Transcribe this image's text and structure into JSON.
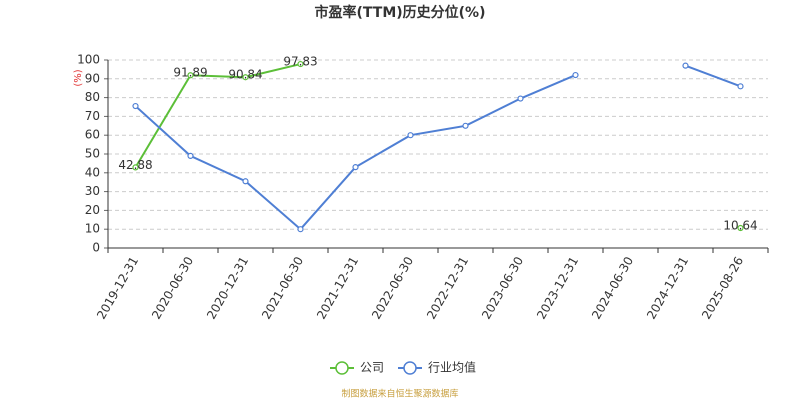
{
  "chart_data": {
    "type": "line",
    "title": "市盈率(TTM)历史分位(%)",
    "y_label": "(%)",
    "categories": [
      "2019-12-31",
      "2020-06-30",
      "2020-12-31",
      "2021-06-30",
      "2021-12-31",
      "2022-06-30",
      "2022-12-31",
      "2023-06-30",
      "2023-12-31",
      "2024-06-30",
      "2024-12-31",
      "2025-08-26"
    ],
    "series": [
      {
        "name": "公司",
        "color": "#5cbf38",
        "labels": true,
        "values": [
          42.88,
          91.89,
          90.84,
          97.83,
          null,
          null,
          null,
          null,
          null,
          null,
          null,
          10.64
        ]
      },
      {
        "name": "行业均值",
        "color": "#4f7fd4",
        "labels": false,
        "values": [
          75.5,
          49,
          35.5,
          10,
          43,
          60,
          65,
          79.5,
          92,
          null,
          97,
          86
        ]
      }
    ],
    "ylim": [
      0,
      100
    ],
    "yticks": [
      0,
      10,
      20,
      30,
      40,
      50,
      60,
      70,
      80,
      90,
      100
    ],
    "grid": true,
    "source": "制图数据来自恒生聚源数据库"
  }
}
